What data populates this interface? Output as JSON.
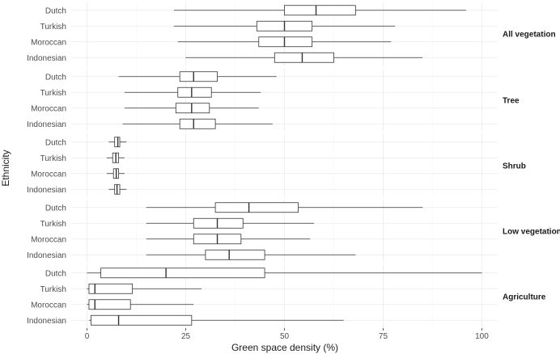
{
  "chart_data": {
    "type": "boxplot",
    "orientation": "horizontal",
    "xlabel": "Green space density (%)",
    "ylabel": "Ethnicity",
    "xlim": [
      -4,
      104
    ],
    "x_ticks": [
      0,
      25,
      50,
      75,
      100
    ],
    "grid": true,
    "categories": [
      "Dutch",
      "Turkish",
      "Moroccan",
      "Indonesian"
    ],
    "facets": [
      {
        "label": "All vegetation",
        "boxes": [
          {
            "category": "Dutch",
            "min": 22,
            "q1": 50,
            "median": 58,
            "q3": 68,
            "max": 96
          },
          {
            "category": "Turkish",
            "min": 22,
            "q1": 43,
            "median": 50,
            "q3": 57,
            "max": 78
          },
          {
            "category": "Moroccan",
            "min": 23,
            "q1": 43.5,
            "median": 50,
            "q3": 57,
            "max": 77
          },
          {
            "category": "Indonesian",
            "min": 25,
            "q1": 47.5,
            "median": 54.5,
            "q3": 62.5,
            "max": 85
          }
        ]
      },
      {
        "label": "Tree",
        "boxes": [
          {
            "category": "Dutch",
            "min": 8,
            "q1": 23.5,
            "median": 27,
            "q3": 33,
            "max": 48
          },
          {
            "category": "Turkish",
            "min": 9.5,
            "q1": 23,
            "median": 26.5,
            "q3": 31.5,
            "max": 44
          },
          {
            "category": "Moroccan",
            "min": 9.5,
            "q1": 22.5,
            "median": 26.5,
            "q3": 31,
            "max": 43.5
          },
          {
            "category": "Indonesian",
            "min": 9,
            "q1": 23.5,
            "median": 27,
            "q3": 32.5,
            "max": 47
          }
        ]
      },
      {
        "label": "Shrub",
        "boxes": [
          {
            "category": "Dutch",
            "min": 5.5,
            "q1": 7,
            "median": 7.8,
            "q3": 8.3,
            "max": 10
          },
          {
            "category": "Turkish",
            "min": 5,
            "q1": 6.5,
            "median": 7.3,
            "q3": 8,
            "max": 9.5
          },
          {
            "category": "Moroccan",
            "min": 5,
            "q1": 6.7,
            "median": 7.4,
            "q3": 8,
            "max": 9.5
          },
          {
            "category": "Indonesian",
            "min": 5.5,
            "q1": 7,
            "median": 7.6,
            "q3": 8.3,
            "max": 10
          }
        ]
      },
      {
        "label": "Low vegetation",
        "boxes": [
          {
            "category": "Dutch",
            "min": 15,
            "q1": 32.5,
            "median": 41,
            "q3": 53.5,
            "max": 85
          },
          {
            "category": "Turkish",
            "min": 15,
            "q1": 27,
            "median": 33,
            "q3": 39.5,
            "max": 57.5
          },
          {
            "category": "Moroccan",
            "min": 15,
            "q1": 27,
            "median": 33,
            "q3": 39,
            "max": 56.5
          },
          {
            "category": "Indonesian",
            "min": 15,
            "q1": 30,
            "median": 36,
            "q3": 45,
            "max": 68
          }
        ]
      },
      {
        "label": "Agriculture",
        "boxes": [
          {
            "category": "Dutch",
            "min": 0,
            "q1": 3.5,
            "median": 20,
            "q3": 45,
            "max": 100
          },
          {
            "category": "Turkish",
            "min": 0,
            "q1": 0.5,
            "median": 2,
            "q3": 11.5,
            "max": 29
          },
          {
            "category": "Moroccan",
            "min": 0,
            "q1": 0.5,
            "median": 2,
            "q3": 11,
            "max": 27
          },
          {
            "category": "Indonesian",
            "min": 0.5,
            "q1": 1,
            "median": 8,
            "q3": 26.5,
            "max": 65
          }
        ]
      }
    ]
  }
}
